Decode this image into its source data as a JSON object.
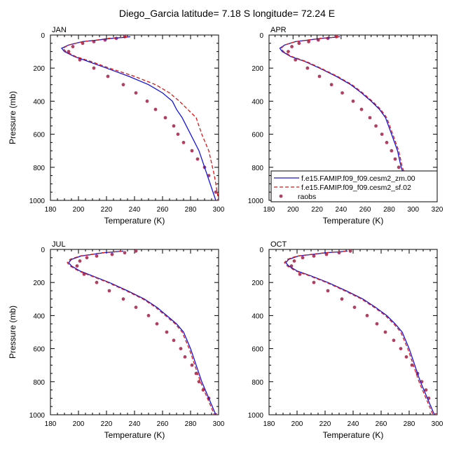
{
  "title": "Diego_Garcia  latitude= 7.18 S longitude= 72.24 E",
  "legend": {
    "items": [
      {
        "label": "f.e15.FAMIP.f09_f09.cesm2_zm.00",
        "color": "#1414e0",
        "style": "solid"
      },
      {
        "label": "f.e15.FAMIP.f09_f09.cesm2_sf.02",
        "color": "#e01414",
        "style": "dashed"
      },
      {
        "label": "raobs",
        "color": "#b04060",
        "style": "marker"
      }
    ]
  },
  "chart_data": [
    {
      "type": "line",
      "panel_label": "JAN",
      "xlabel": "Temperature (K)",
      "ylabel": "Pressure (mb)",
      "xlim": [
        180,
        300
      ],
      "ylim": [
        0,
        1000
      ],
      "y_inverted": true,
      "x_ticks": [
        180,
        200,
        220,
        240,
        260,
        280,
        300
      ],
      "y_ticks": [
        0,
        200,
        400,
        600,
        800,
        1000
      ],
      "series": [
        {
          "name": "f.e15.FAMIP.f09_f09.cesm2_zm.00",
          "color": "#1414e0",
          "style": "solid",
          "x": [
            237,
            232,
            224,
            214,
            203,
            193,
            188,
            190,
            197,
            207,
            220,
            236,
            250,
            260,
            267,
            270,
            274,
            280,
            286,
            292,
            298
          ],
          "y": [
            10,
            15,
            20,
            30,
            40,
            60,
            80,
            100,
            130,
            160,
            200,
            250,
            300,
            350,
            400,
            450,
            500,
            600,
            700,
            850,
            1000
          ]
        },
        {
          "name": "f.e15.FAMIP.f09_f09.cesm2_sf.02",
          "color": "#e01414",
          "style": "dashed",
          "x": [
            235,
            230,
            222,
            213,
            203,
            193,
            189,
            191,
            198,
            209,
            222,
            240,
            255,
            265,
            272,
            278,
            284,
            288,
            293,
            297,
            300
          ],
          "y": [
            10,
            15,
            20,
            30,
            40,
            60,
            80,
            100,
            130,
            160,
            200,
            250,
            300,
            350,
            400,
            450,
            500,
            600,
            700,
            850,
            1000
          ]
        }
      ],
      "raobs": {
        "x": [
          233,
          227,
          219,
          211,
          203,
          196,
          193,
          201,
          211,
          221,
          232,
          241,
          249,
          255,
          262,
          268,
          271,
          275,
          281,
          285,
          290,
          293,
          298,
          300
        ],
        "y": [
          10,
          20,
          30,
          40,
          50,
          70,
          100,
          150,
          200,
          250,
          300,
          350,
          400,
          450,
          500,
          550,
          600,
          650,
          700,
          750,
          800,
          850,
          950,
          1000
        ]
      }
    },
    {
      "type": "line",
      "panel_label": "APR",
      "xlabel": "Temperature (K)",
      "ylabel": "",
      "xlim": [
        180,
        320
      ],
      "ylim": [
        0,
        1000
      ],
      "y_inverted": true,
      "x_ticks": [
        180,
        200,
        220,
        240,
        260,
        280,
        300,
        320
      ],
      "y_ticks": [
        0,
        200,
        400,
        600,
        800,
        1000
      ],
      "series": [
        {
          "name": "f.e15.FAMIP.f09_f09.cesm2_zm.00",
          "color": "#1414e0",
          "style": "solid",
          "x": [
            239,
            233,
            224,
            213,
            202,
            193,
            189,
            191,
            198,
            210,
            222,
            236,
            248,
            257,
            265,
            272,
            277,
            282,
            287,
            290,
            295,
            299
          ],
          "y": [
            10,
            15,
            20,
            30,
            40,
            60,
            80,
            100,
            130,
            160,
            200,
            250,
            300,
            350,
            400,
            450,
            500,
            600,
            700,
            800,
            900,
            1000
          ]
        },
        {
          "name": "f.e15.FAMIP.f09_f09.cesm2_sf.02",
          "color": "#e01414",
          "style": "dashed",
          "x": [
            238,
            232,
            223,
            212,
            202,
            193,
            190,
            192,
            199,
            211,
            223,
            237,
            249,
            258,
            266,
            273,
            278,
            283,
            288,
            291,
            296,
            300
          ],
          "y": [
            10,
            15,
            20,
            30,
            40,
            60,
            80,
            100,
            130,
            160,
            200,
            250,
            300,
            350,
            400,
            450,
            500,
            600,
            700,
            800,
            900,
            1000
          ]
        }
      ],
      "raobs": {
        "x": [
          236,
          229,
          221,
          213,
          205,
          199,
          196,
          202,
          212,
          222,
          232,
          241,
          250,
          257,
          264,
          269,
          274,
          278,
          282,
          285,
          288,
          291,
          294,
          300
        ],
        "y": [
          10,
          20,
          30,
          40,
          50,
          70,
          100,
          150,
          200,
          250,
          300,
          350,
          400,
          450,
          500,
          550,
          600,
          650,
          700,
          750,
          800,
          850,
          900,
          1000
        ]
      }
    },
    {
      "type": "line",
      "panel_label": "JUL",
      "xlabel": "Temperature (K)",
      "ylabel": "Pressure (mb)",
      "xlim": [
        180,
        300
      ],
      "ylim": [
        0,
        1000
      ],
      "y_inverted": true,
      "x_ticks": [
        180,
        200,
        220,
        240,
        260,
        280,
        300
      ],
      "y_ticks": [
        0,
        200,
        400,
        600,
        800,
        1000
      ],
      "series": [
        {
          "name": "f.e15.FAMIP.f09_f09.cesm2_zm.00",
          "color": "#1414e0",
          "style": "solid",
          "x": [
            232,
            226,
            218,
            210,
            202,
            195,
            193,
            195,
            201,
            210,
            222,
            235,
            247,
            256,
            263,
            270,
            275,
            280,
            284,
            288,
            293,
            298
          ],
          "y": [
            10,
            15,
            20,
            30,
            40,
            60,
            80,
            100,
            130,
            160,
            200,
            250,
            300,
            350,
            400,
            450,
            500,
            600,
            700,
            800,
            900,
            1000
          ]
        },
        {
          "name": "f.e15.FAMIP.f09_f09.cesm2_sf.02",
          "color": "#e01414",
          "style": "dashed",
          "x": [
            231,
            225,
            217,
            209,
            201,
            194,
            192,
            194,
            200,
            209,
            221,
            234,
            246,
            255,
            262,
            269,
            274,
            279,
            283,
            287,
            292,
            297
          ],
          "y": [
            10,
            15,
            20,
            30,
            40,
            60,
            80,
            100,
            130,
            160,
            200,
            250,
            300,
            350,
            400,
            450,
            500,
            600,
            700,
            800,
            900,
            1000
          ]
        }
      ],
      "raobs": {
        "x": [
          241,
          233,
          224,
          213,
          206,
          201,
          199,
          204,
          213,
          222,
          232,
          241,
          250,
          256,
          263,
          268,
          273,
          276,
          281,
          284,
          286,
          289,
          293,
          298
        ],
        "y": [
          10,
          20,
          30,
          40,
          50,
          70,
          100,
          150,
          200,
          250,
          300,
          350,
          400,
          450,
          500,
          550,
          600,
          650,
          700,
          750,
          800,
          850,
          900,
          1000
        ]
      }
    },
    {
      "type": "line",
      "panel_label": "OCT",
      "xlabel": "Temperature (K)",
      "ylabel": "",
      "xlim": [
        180,
        300
      ],
      "ylim": [
        0,
        1000
      ],
      "y_inverted": true,
      "x_ticks": [
        180,
        200,
        220,
        240,
        260,
        280,
        300
      ],
      "y_ticks": [
        0,
        200,
        400,
        600,
        800,
        1000
      ],
      "series": [
        {
          "name": "f.e15.FAMIP.f09_f09.cesm2_zm.00",
          "color": "#1414e0",
          "style": "solid",
          "x": [
            236,
            230,
            221,
            211,
            201,
            194,
            192,
            194,
            200,
            210,
            222,
            235,
            247,
            256,
            264,
            270,
            275,
            280,
            284,
            288,
            293,
            298
          ],
          "y": [
            10,
            15,
            20,
            30,
            40,
            60,
            80,
            100,
            130,
            160,
            200,
            250,
            300,
            350,
            400,
            450,
            500,
            600,
            700,
            800,
            900,
            1000
          ]
        },
        {
          "name": "f.e15.FAMIP.f09_f09.cesm2_sf.02",
          "color": "#e01414",
          "style": "dashed",
          "x": [
            235,
            229,
            220,
            210,
            200,
            193,
            191,
            193,
            199,
            209,
            221,
            234,
            246,
            255,
            263,
            269,
            274,
            279,
            283,
            287,
            292,
            297
          ],
          "y": [
            10,
            15,
            20,
            30,
            40,
            60,
            80,
            100,
            130,
            160,
            200,
            250,
            300,
            350,
            400,
            450,
            500,
            600,
            700,
            800,
            900,
            1000
          ]
        }
      ],
      "raobs": {
        "x": [
          238,
          230,
          221,
          212,
          204,
          198,
          196,
          202,
          212,
          222,
          232,
          241,
          250,
          257,
          263,
          269,
          274,
          278,
          282,
          286,
          289,
          292,
          294,
          299
        ],
        "y": [
          10,
          20,
          30,
          40,
          50,
          70,
          100,
          150,
          200,
          250,
          300,
          350,
          400,
          450,
          500,
          550,
          600,
          650,
          700,
          750,
          800,
          850,
          900,
          1000
        ]
      }
    }
  ]
}
